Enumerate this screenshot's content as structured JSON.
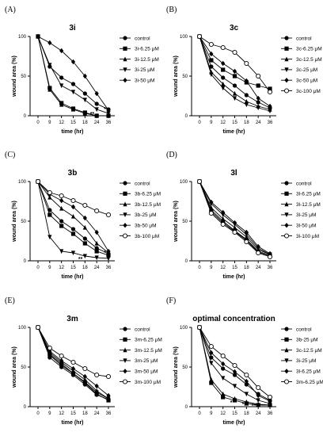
{
  "chart_data": [
    {
      "letter": "(A)",
      "type": "line",
      "title": "3i",
      "xlabel": "time (hr)",
      "ylabel": "wound area (%)",
      "x": [
        "0",
        "9",
        "12",
        "15",
        "18",
        "24",
        "36"
      ],
      "ylim": [
        0,
        100
      ],
      "yticks": [
        "0",
        "50",
        "100"
      ],
      "series": [
        {
          "name": "control",
          "marker": "circle",
          "values": [
            100,
            62,
            48,
            40,
            28,
            15,
            8
          ]
        },
        {
          "name": "3i-6.25 μM",
          "marker": "square",
          "values": [
            100,
            35,
            16,
            9,
            4,
            0,
            0
          ]
        },
        {
          "name": "3i-12.5 μM",
          "marker": "triangle-up",
          "values": [
            100,
            33,
            14,
            8,
            3,
            0,
            0
          ]
        },
        {
          "name": "3i-25 μM",
          "marker": "triangle-down",
          "values": [
            100,
            64,
            38,
            30,
            20,
            8,
            3
          ]
        },
        {
          "name": "3i-50 μM",
          "marker": "diamond",
          "values": [
            100,
            92,
            82,
            68,
            50,
            28,
            7
          ]
        }
      ],
      "annotations": [
        {
          "text": "**",
          "x": "24",
          "y": 2
        },
        {
          "text": "*",
          "x": "36",
          "y": 8
        }
      ]
    },
    {
      "letter": "(B)",
      "type": "line",
      "title": "3c",
      "xlabel": "time (hr)",
      "ylabel": "wound area (%)",
      "x": [
        "0",
        "9",
        "12",
        "15",
        "18",
        "24",
        "36"
      ],
      "ylim": [
        0,
        100
      ],
      "yticks": [
        "0",
        "50",
        "100"
      ],
      "series": [
        {
          "name": "control",
          "marker": "circle",
          "values": [
            100,
            62,
            48,
            38,
            26,
            17,
            10
          ]
        },
        {
          "name": "3c-6.25 μM",
          "marker": "square",
          "values": [
            100,
            70,
            58,
            50,
            42,
            38,
            34
          ]
        },
        {
          "name": "3c-12.5 μM",
          "marker": "triangle-up",
          "values": [
            100,
            55,
            40,
            28,
            18,
            12,
            8
          ]
        },
        {
          "name": "3c-25 μM",
          "marker": "triangle-down",
          "values": [
            100,
            52,
            35,
            22,
            14,
            10,
            6
          ]
        },
        {
          "name": "3c-50 μM",
          "marker": "diamond",
          "values": [
            100,
            78,
            66,
            56,
            44,
            22,
            12
          ]
        },
        {
          "name": "3c-100 μM",
          "marker": "circle-open",
          "values": [
            100,
            90,
            86,
            80,
            66,
            50,
            30
          ]
        }
      ],
      "annotations": []
    },
    {
      "letter": "(C)",
      "type": "line",
      "title": "3b",
      "xlabel": "time (hr)",
      "ylabel": "wound area (%)",
      "x": [
        "0",
        "9",
        "12",
        "15",
        "18",
        "24",
        "36"
      ],
      "ylim": [
        0,
        100
      ],
      "yticks": [
        "0",
        "50",
        "100"
      ],
      "series": [
        {
          "name": "control",
          "marker": "circle",
          "values": [
            100,
            64,
            50,
            40,
            28,
            16,
            9
          ]
        },
        {
          "name": "3b-6.25 μM",
          "marker": "square",
          "values": [
            100,
            58,
            44,
            34,
            22,
            12,
            7
          ]
        },
        {
          "name": "3b-12.5 μM",
          "marker": "triangle-up",
          "values": [
            100,
            80,
            66,
            56,
            42,
            22,
            10
          ]
        },
        {
          "name": "3b-25 μM",
          "marker": "triangle-down",
          "values": [
            100,
            30,
            12,
            10,
            6,
            4,
            3
          ]
        },
        {
          "name": "3b-50 μM",
          "marker": "diamond",
          "values": [
            100,
            84,
            76,
            68,
            54,
            36,
            12
          ]
        },
        {
          "name": "3b-100 μM",
          "marker": "circle-open",
          "values": [
            100,
            86,
            82,
            76,
            70,
            63,
            58
          ]
        }
      ],
      "annotations": [
        {
          "text": "**",
          "x": "18",
          "y": 2
        },
        {
          "text": "*",
          "x": "36",
          "y": 10
        }
      ]
    },
    {
      "letter": "(D)",
      "type": "line",
      "title": "3l",
      "xlabel": "time (hr)",
      "ylabel": "wound area (%)",
      "x": [
        "0",
        "9",
        "12",
        "15",
        "18",
        "24",
        "36"
      ],
      "ylim": [
        0,
        100
      ],
      "yticks": [
        "0",
        "50",
        "100"
      ],
      "series": [
        {
          "name": "control",
          "marker": "circle",
          "values": [
            100,
            64,
            50,
            38,
            27,
            12,
            7
          ]
        },
        {
          "name": "3l-6.25 μM",
          "marker": "square",
          "values": [
            100,
            62,
            48,
            37,
            26,
            11,
            6
          ]
        },
        {
          "name": "3l-12.5 μM",
          "marker": "triangle-up",
          "values": [
            100,
            67,
            53,
            42,
            30,
            14,
            8
          ]
        },
        {
          "name": "3l-25 μM",
          "marker": "triangle-down",
          "values": [
            100,
            72,
            58,
            46,
            33,
            16,
            8
          ]
        },
        {
          "name": "3l-50 μM",
          "marker": "diamond",
          "values": [
            100,
            74,
            61,
            48,
            36,
            18,
            9
          ]
        },
        {
          "name": "3l-100 μM",
          "marker": "circle-open",
          "values": [
            100,
            60,
            46,
            36,
            24,
            10,
            5
          ]
        }
      ],
      "annotations": []
    },
    {
      "letter": "(E)",
      "type": "line",
      "title": "3m",
      "xlabel": "time (hr)",
      "ylabel": "wound area (%)",
      "x": [
        "0",
        "9",
        "12",
        "15",
        "18",
        "24",
        "36"
      ],
      "ylim": [
        0,
        100
      ],
      "yticks": [
        "0",
        "50",
        "100"
      ],
      "series": [
        {
          "name": "control",
          "marker": "circle",
          "values": [
            100,
            62,
            50,
            40,
            28,
            15,
            9
          ]
        },
        {
          "name": "3m-6.25 μM",
          "marker": "square",
          "values": [
            100,
            66,
            54,
            42,
            30,
            16,
            8
          ]
        },
        {
          "name": "3m-12.5 μM",
          "marker": "triangle-up",
          "values": [
            100,
            68,
            56,
            45,
            34,
            20,
            10
          ]
        },
        {
          "name": "3m-25 μM",
          "marker": "triangle-down",
          "values": [
            100,
            65,
            52,
            42,
            31,
            18,
            10
          ]
        },
        {
          "name": "3m-50 μM",
          "marker": "diamond",
          "values": [
            100,
            70,
            58,
            48,
            38,
            26,
            14
          ]
        },
        {
          "name": "3m-100 μM",
          "marker": "circle-open",
          "values": [
            100,
            74,
            64,
            56,
            48,
            40,
            38
          ]
        }
      ],
      "annotations": []
    },
    {
      "letter": "(F)",
      "type": "line",
      "title": "optimal concentration",
      "xlabel": "time (hr)",
      "ylabel": "wound area (%)",
      "x": [
        "0",
        "9",
        "12",
        "15",
        "18",
        "24",
        "36"
      ],
      "ylim": [
        0,
        100
      ],
      "yticks": [
        "0",
        "50",
        "100"
      ],
      "series": [
        {
          "name": "control",
          "marker": "circle",
          "values": [
            100,
            62,
            48,
            40,
            28,
            16,
            8
          ]
        },
        {
          "name": "3b-25 μM",
          "marker": "square",
          "values": [
            100,
            30,
            12,
            8,
            4,
            2,
            2
          ]
        },
        {
          "name": "3c-12.5 μM",
          "marker": "triangle-up",
          "values": [
            100,
            34,
            16,
            10,
            6,
            3,
            2
          ]
        },
        {
          "name": "3i-25 μM",
          "marker": "triangle-down",
          "values": [
            100,
            55,
            36,
            26,
            16,
            8,
            4
          ]
        },
        {
          "name": "3l-6.25 μM",
          "marker": "diamond",
          "values": [
            100,
            68,
            54,
            44,
            32,
            14,
            7
          ]
        },
        {
          "name": "3m-6.25 μM",
          "marker": "circle-open",
          "values": [
            100,
            76,
            64,
            52,
            40,
            24,
            12
          ]
        }
      ],
      "annotations": [
        {
          "text": "*",
          "x": "15",
          "y": 5
        },
        {
          "text": "*",
          "x": "18",
          "y": 3
        },
        {
          "text": "**",
          "x": "24",
          "y": 1
        }
      ]
    }
  ]
}
